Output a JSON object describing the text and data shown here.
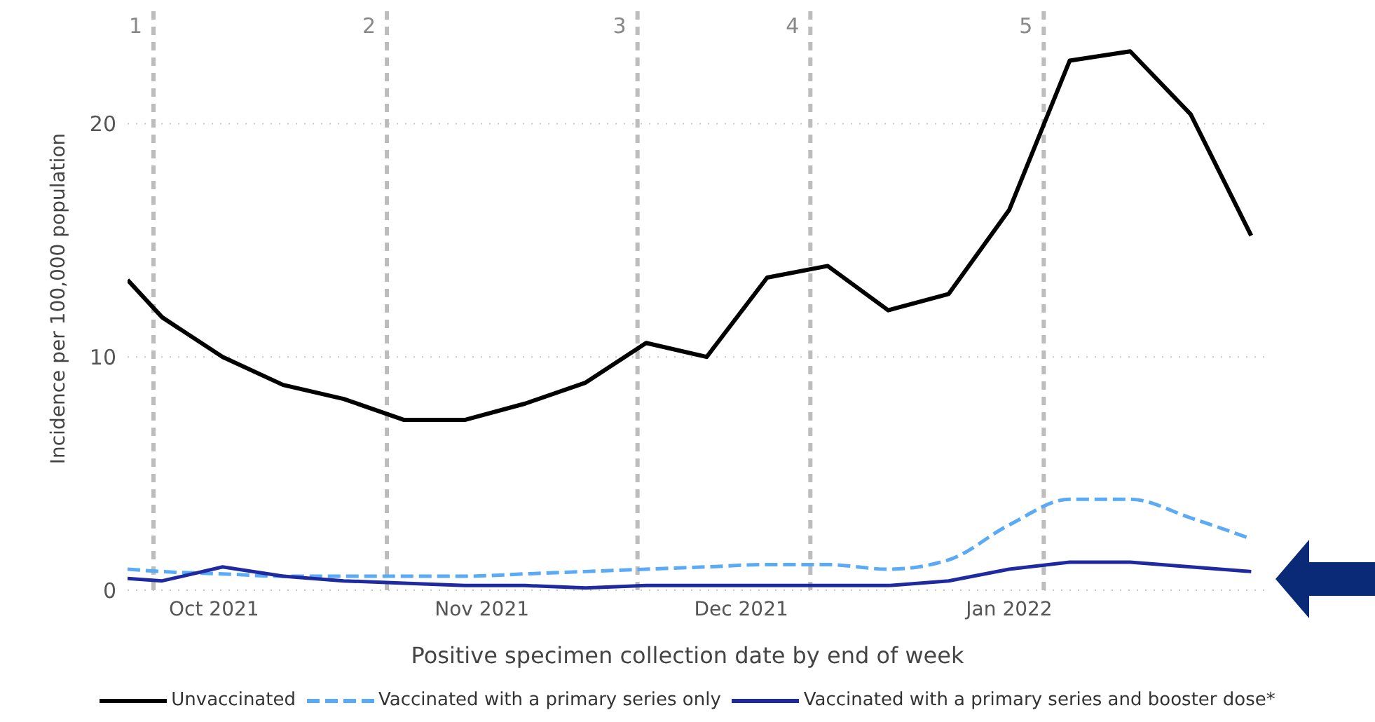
{
  "chart_data": {
    "type": "line",
    "ylabel": "Incidence per 100,000 population",
    "xlabel": "Positive specimen collection date by end of week",
    "x": [
      "2021-09-21",
      "2021-09-25",
      "2021-10-02",
      "2021-10-09",
      "2021-10-16",
      "2021-10-23",
      "2021-10-30",
      "2021-11-06",
      "2021-11-13",
      "2021-11-20",
      "2021-11-27",
      "2021-12-04",
      "2021-12-11",
      "2021-12-18",
      "2021-12-25",
      "2022-01-01",
      "2022-01-08",
      "2022-01-15",
      "2022-01-22",
      "2022-01-29"
    ],
    "series": [
      {
        "name": "Unvaccinated",
        "color": "#000000",
        "line_style": "solid",
        "values": [
          13.3,
          11.7,
          10.0,
          8.8,
          8.2,
          7.3,
          7.3,
          8.0,
          8.9,
          10.6,
          10.0,
          13.4,
          13.9,
          12.0,
          12.7,
          16.3,
          22.7,
          23.1,
          20.4,
          15.2
        ]
      },
      {
        "name": "Vaccinated with a primary series only",
        "color": "#5aaaf5",
        "line_style": "dashed",
        "values": [
          0.9,
          0.8,
          0.7,
          0.6,
          0.6,
          0.6,
          0.6,
          0.7,
          0.8,
          0.9,
          1.0,
          1.1,
          1.1,
          0.9,
          1.3,
          2.8,
          3.9,
          3.9,
          3.1,
          2.2
        ]
      },
      {
        "name": "Vaccinated with a primary series and booster dose*",
        "color": "#1f2aa0",
        "line_style": "solid",
        "values": [
          0.5,
          0.4,
          1.0,
          0.6,
          0.4,
          0.3,
          0.2,
          0.2,
          0.1,
          0.2,
          0.2,
          0.2,
          0.2,
          0.2,
          0.4,
          0.9,
          1.2,
          1.2,
          1.0,
          0.8
        ]
      }
    ],
    "xlim": [
      "2021-09-21",
      "2022-01-31"
    ],
    "xticks": [
      {
        "value": "2021-10-01",
        "label": "Oct 2021"
      },
      {
        "value": "2021-11-01",
        "label": "Nov 2021"
      },
      {
        "value": "2021-12-01",
        "label": "Dec 2021"
      },
      {
        "value": "2022-01-01",
        "label": "Jan 2022"
      }
    ],
    "ylim": [
      0,
      25
    ],
    "yticks": [
      0,
      10,
      20
    ],
    "ref_lines": [
      {
        "axis": "x",
        "value": "2021-09-24",
        "label": "1",
        "color": "#bdbdbd",
        "line_style": "dashed"
      },
      {
        "axis": "x",
        "value": "2021-10-21",
        "label": "2",
        "color": "#bdbdbd",
        "line_style": "dashed"
      },
      {
        "axis": "x",
        "value": "2021-11-19",
        "label": "3",
        "color": "#bdbdbd",
        "line_style": "dashed"
      },
      {
        "axis": "x",
        "value": "2021-12-09",
        "label": "4",
        "color": "#bdbdbd",
        "line_style": "dashed"
      },
      {
        "axis": "x",
        "value": "2022-01-05",
        "label": "5",
        "color": "#bdbdbd",
        "line_style": "dashed"
      }
    ],
    "grid": "y",
    "legend": "bottom",
    "marker": "none"
  }
}
